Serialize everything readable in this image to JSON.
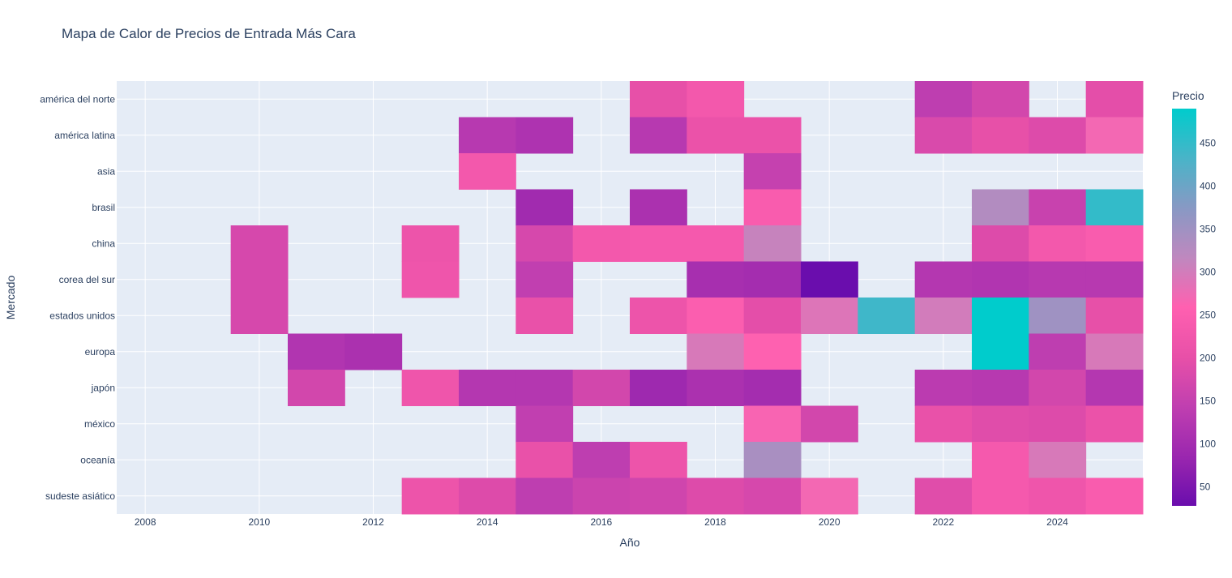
{
  "chart_data": {
    "type": "heatmap",
    "title": "Mapa de Calor de Precios de Entrada Más Cara",
    "xlabel": "Año",
    "ylabel": "Mercado",
    "colorbar_title": "Precio",
    "x_tick_labels": [
      "2008",
      "2010",
      "2012",
      "2014",
      "2016",
      "2018",
      "2020",
      "2022",
      "2024"
    ],
    "x_range": [
      2007.5,
      2025.5
    ],
    "color_range": [
      28,
      490
    ],
    "colorbar_ticks": [
      50,
      100,
      150,
      200,
      250,
      300,
      350,
      400,
      450
    ],
    "colorscale": [
      "#6a0dad",
      "#9b27af",
      "#c03fb0",
      "#e850a8",
      "#ff60b0",
      "#bf88bf",
      "#8899c4",
      "#49b4c8",
      "#00cccc"
    ],
    "grid": true,
    "markets": [
      "américa del norte",
      "américa latina",
      "asia",
      "brasil",
      "china",
      "corea del sur",
      "estados unidos",
      "europa",
      "japón",
      "méxico",
      "oceanía",
      "sudeste asiático"
    ],
    "years": [
      2008,
      2009,
      2010,
      2011,
      2012,
      2013,
      2014,
      2015,
      2016,
      2017,
      2018,
      2019,
      2020,
      2021,
      2022,
      2023,
      2024,
      2025
    ],
    "values": [
      [
        null,
        null,
        null,
        null,
        null,
        null,
        null,
        null,
        null,
        200,
        230,
        null,
        null,
        null,
        140,
        170,
        null,
        195
      ],
      [
        null,
        null,
        null,
        null,
        null,
        null,
        130,
        115,
        null,
        130,
        210,
        210,
        null,
        null,
        180,
        200,
        185,
        270
      ],
      [
        null,
        null,
        null,
        null,
        null,
        null,
        230,
        null,
        null,
        null,
        null,
        150,
        null,
        null,
        null,
        null,
        null,
        null
      ],
      [
        null,
        null,
        null,
        null,
        null,
        null,
        null,
        95,
        null,
        110,
        null,
        245,
        null,
        null,
        null,
        330,
        155,
        450
      ],
      [
        null,
        null,
        175,
        null,
        null,
        215,
        null,
        175,
        230,
        235,
        235,
        310,
        null,
        null,
        null,
        185,
        230,
        245
      ],
      [
        null,
        null,
        175,
        null,
        null,
        220,
        null,
        145,
        null,
        null,
        105,
        100,
        28,
        null,
        125,
        120,
        130,
        130
      ],
      [
        null,
        null,
        175,
        null,
        null,
        null,
        null,
        205,
        null,
        215,
        250,
        195,
        290,
        440,
        300,
        490,
        350,
        200
      ],
      [
        null,
        null,
        null,
        120,
        110,
        null,
        null,
        null,
        null,
        null,
        295,
        260,
        null,
        null,
        null,
        490,
        140,
        295
      ],
      [
        null,
        null,
        null,
        170,
        null,
        220,
        125,
        125,
        170,
        90,
        110,
        100,
        null,
        null,
        135,
        130,
        170,
        125
      ],
      [
        null,
        null,
        null,
        null,
        null,
        null,
        null,
        145,
        null,
        null,
        null,
        265,
        170,
        null,
        205,
        190,
        185,
        210
      ],
      [
        null,
        null,
        null,
        null,
        null,
        null,
        null,
        205,
        140,
        215,
        null,
        340,
        null,
        null,
        null,
        235,
        295,
        null
      ],
      [
        null,
        null,
        null,
        null,
        null,
        215,
        185,
        140,
        160,
        165,
        185,
        175,
        270,
        null,
        190,
        235,
        220,
        245
      ]
    ]
  }
}
